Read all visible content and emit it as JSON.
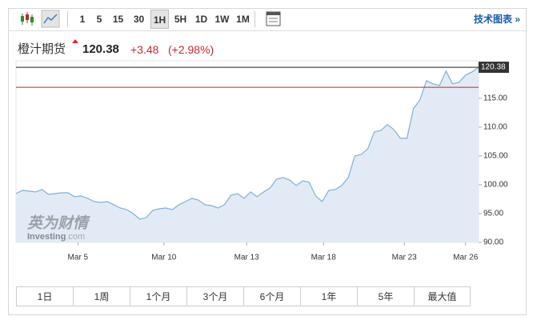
{
  "toolbar": {
    "intervals": [
      "1",
      "5",
      "15",
      "30",
      "1H",
      "5H",
      "1D",
      "1W",
      "1M"
    ],
    "selected_interval": "1H",
    "link": "技术图表 »"
  },
  "header": {
    "name": "橙汁期货",
    "price": "120.38",
    "change": "+3.48",
    "change_pct": "(+2.98%)"
  },
  "watermark": {
    "cn": "英为财情",
    "en": "Investing",
    "suffix": ".com"
  },
  "ranges": [
    "1日",
    "1周",
    "1个月",
    "3个月",
    "6个月",
    "1年",
    "5年",
    "最大值"
  ],
  "chart_data": {
    "type": "area",
    "color": "#7eb0d9",
    "fill": "#e2ebf5",
    "values": [
      98.47,
      99.03,
      98.89,
      98.75,
      99.17,
      98.33,
      98.47,
      98.61,
      98.61,
      97.92,
      98.06,
      97.64,
      97.08,
      96.94,
      97.08,
      96.53,
      95.97,
      95.69,
      95.0,
      94.03,
      94.31,
      95.56,
      95.83,
      95.97,
      95.69,
      96.53,
      97.08,
      97.64,
      97.36,
      96.53,
      96.39,
      95.97,
      96.53,
      98.19,
      98.47,
      97.64,
      98.75,
      97.92,
      98.75,
      99.44,
      100.97,
      101.25,
      100.83,
      99.86,
      100.69,
      100.42,
      98.06,
      97.08,
      99.03,
      99.17,
      99.86,
      101.25,
      105.0,
      105.28,
      106.25,
      109.17,
      109.44,
      110.42,
      109.58,
      108.06,
      108.06,
      113.19,
      114.72,
      118.06,
      117.5,
      117.22,
      119.72,
      117.5,
      117.78,
      119.03,
      119.58,
      120.38
    ],
    "xlim": [
      0,
      71
    ],
    "xticks": [
      {
        "value": 9.5,
        "label": "Mar 5"
      },
      {
        "value": 22.7,
        "label": "Mar 10"
      },
      {
        "value": 35.4,
        "label": "Mar 13"
      },
      {
        "value": 47.2,
        "label": "Mar 18"
      },
      {
        "value": 59.6,
        "label": "Mar 23"
      },
      {
        "value": 69,
        "label": "Mar 26"
      }
    ],
    "ylim": [
      90,
      121.5
    ],
    "yticks": [
      {
        "value": 90,
        "label": "90.00"
      },
      {
        "value": 95,
        "label": "95.00"
      },
      {
        "value": 100,
        "label": "100.00"
      },
      {
        "value": 105,
        "label": "105.00"
      },
      {
        "value": 110,
        "label": "110.00"
      },
      {
        "value": 115,
        "label": "115.00"
      }
    ],
    "last_label": "120.38",
    "prev_close": 116.9,
    "prev_close_color": "#c0272d"
  }
}
